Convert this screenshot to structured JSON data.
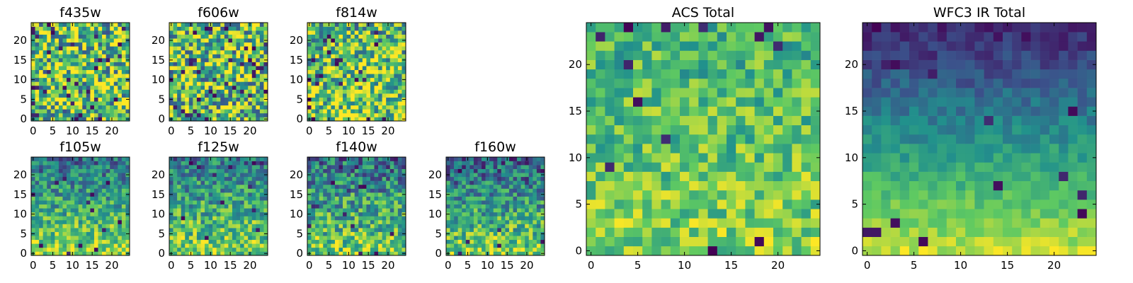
{
  "figure": {
    "colormap": "viridis",
    "colormap_stops": [
      "#440154",
      "#3b528b",
      "#21918c",
      "#5ec962",
      "#fde725"
    ]
  },
  "chart_data": [
    {
      "type": "heatmap",
      "title": "f435w",
      "grid_size": [
        25,
        25
      ],
      "x_ticks": [
        0,
        5,
        10,
        15,
        20
      ],
      "y_ticks": [
        0,
        5,
        10,
        15,
        20
      ],
      "xlim": [
        -0.5,
        24.5
      ],
      "ylim": [
        -0.5,
        24.5
      ],
      "gradient": 0.0,
      "noise": 0.45,
      "dark_spot_prob": 0.05,
      "base": 0.7,
      "seed": 11
    },
    {
      "type": "heatmap",
      "title": "f606w",
      "grid_size": [
        25,
        25
      ],
      "x_ticks": [
        0,
        5,
        10,
        15,
        20
      ],
      "y_ticks": [
        0,
        5,
        10,
        15,
        20
      ],
      "xlim": [
        -0.5,
        24.5
      ],
      "ylim": [
        -0.5,
        24.5
      ],
      "gradient": 0.0,
      "noise": 0.45,
      "dark_spot_prob": 0.05,
      "base": 0.7,
      "seed": 23
    },
    {
      "type": "heatmap",
      "title": "f814w",
      "grid_size": [
        25,
        25
      ],
      "x_ticks": [
        0,
        5,
        10,
        15,
        20
      ],
      "y_ticks": [
        0,
        5,
        10,
        15,
        20
      ],
      "xlim": [
        -0.5,
        24.5
      ],
      "ylim": [
        -0.5,
        24.5
      ],
      "gradient": 0.1,
      "noise": 0.4,
      "dark_spot_prob": 0.04,
      "base": 0.72,
      "seed": 37
    },
    {
      "type": "heatmap",
      "title": "f105w",
      "grid_size": [
        25,
        25
      ],
      "x_ticks": [
        0,
        5,
        10,
        15,
        20
      ],
      "y_ticks": [
        0,
        5,
        10,
        15,
        20
      ],
      "xlim": [
        -0.5,
        24.5
      ],
      "ylim": [
        -0.5,
        24.5
      ],
      "gradient": 0.45,
      "noise": 0.25,
      "dark_spot_prob": 0.02,
      "base": 0.6,
      "seed": 41
    },
    {
      "type": "heatmap",
      "title": "f125w",
      "grid_size": [
        25,
        25
      ],
      "x_ticks": [
        0,
        5,
        10,
        15,
        20
      ],
      "y_ticks": [
        0,
        5,
        10,
        15,
        20
      ],
      "xlim": [
        -0.5,
        24.5
      ],
      "ylim": [
        -0.5,
        24.5
      ],
      "gradient": 0.4,
      "noise": 0.28,
      "dark_spot_prob": 0.02,
      "base": 0.6,
      "seed": 53
    },
    {
      "type": "heatmap",
      "title": "f140w",
      "grid_size": [
        25,
        25
      ],
      "x_ticks": [
        0,
        5,
        10,
        15,
        20
      ],
      "y_ticks": [
        0,
        5,
        10,
        15,
        20
      ],
      "xlim": [
        -0.5,
        24.5
      ],
      "ylim": [
        -0.5,
        24.5
      ],
      "gradient": 0.4,
      "noise": 0.3,
      "dark_spot_prob": 0.02,
      "base": 0.58,
      "seed": 67
    },
    {
      "type": "heatmap",
      "title": "f160w",
      "grid_size": [
        25,
        25
      ],
      "x_ticks": [
        0,
        5,
        10,
        15,
        20
      ],
      "y_ticks": [
        0,
        5,
        10,
        15,
        20
      ],
      "xlim": [
        -0.5,
        24.5
      ],
      "ylim": [
        -0.5,
        24.5
      ],
      "gradient": 0.5,
      "noise": 0.28,
      "dark_spot_prob": 0.02,
      "base": 0.55,
      "seed": 79
    },
    {
      "type": "heatmap",
      "title": "ACS Total",
      "grid_size": [
        25,
        25
      ],
      "x_ticks": [
        0,
        5,
        10,
        15,
        20
      ],
      "y_ticks": [
        0,
        5,
        10,
        15,
        20
      ],
      "xlim": [
        -0.5,
        24.5
      ],
      "ylim": [
        -0.5,
        24.5
      ],
      "gradient": 0.15,
      "noise": 0.22,
      "dark_spot_prob": 0.025,
      "base": 0.72,
      "seed": 97
    },
    {
      "type": "heatmap",
      "title": "WFC3 IR Total",
      "grid_size": [
        25,
        25
      ],
      "x_ticks": [
        0,
        5,
        10,
        15,
        20
      ],
      "y_ticks": [
        0,
        5,
        10,
        15,
        20
      ],
      "xlim": [
        -0.5,
        24.5
      ],
      "ylim": [
        -0.5,
        24.5
      ],
      "gradient": 0.8,
      "noise": 0.1,
      "dark_spot_prob": 0.02,
      "base": 0.5,
      "seed": 113
    }
  ]
}
